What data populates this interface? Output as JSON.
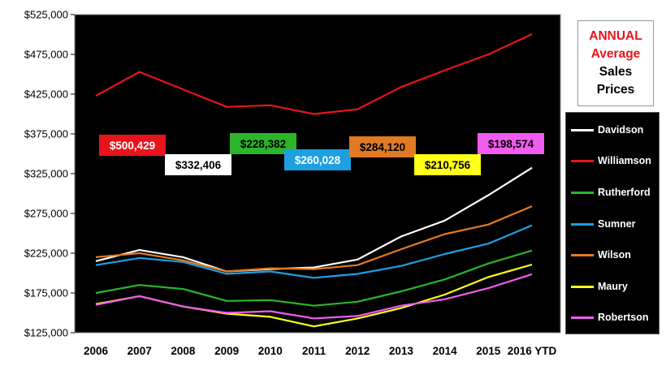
{
  "title": {
    "line1": "ANNUAL",
    "line2": "Average",
    "line3": "Sales",
    "line4": "Prices"
  },
  "colors": {
    "plot_bg": "#000000",
    "title_red": "#e8141c",
    "Davidson": "#ffffff",
    "Williamson": "#e8141c",
    "Rutherford": "#2bb52b",
    "Sumner": "#1e9fe0",
    "Wilson": "#e07a24",
    "Maury": "#ffff1a",
    "Robertson": "#f05cf0"
  },
  "chart_data": {
    "type": "line",
    "categories": [
      "2006",
      "2007",
      "2008",
      "2009",
      "2010",
      "2011",
      "2012",
      "2013",
      "2014",
      "2015",
      "2016 YTD"
    ],
    "ylim": [
      125000,
      525000
    ],
    "yticks": [
      "$125,000",
      "$175,000",
      "$225,000",
      "$275,000",
      "$325,000",
      "$375,000",
      "$425,000",
      "$475,000",
      "$525,000"
    ],
    "ytick_values": [
      125000,
      175000,
      225000,
      275000,
      325000,
      375000,
      425000,
      475000,
      525000
    ],
    "legend_position": "right",
    "grid": false,
    "series": [
      {
        "name": "Davidson",
        "values": [
          215000,
          229000,
          220000,
          202000,
          205000,
          207000,
          217000,
          246000,
          266000,
          298000,
          332406
        ]
      },
      {
        "name": "Williamson",
        "values": [
          423000,
          453000,
          431000,
          409000,
          411000,
          400000,
          406000,
          434000,
          455000,
          475000,
          500429
        ]
      },
      {
        "name": "Rutherford",
        "values": [
          175000,
          185000,
          180000,
          165000,
          166000,
          159000,
          164000,
          177000,
          192000,
          212000,
          228382
        ]
      },
      {
        "name": "Sumner",
        "values": [
          210000,
          219000,
          214000,
          199000,
          202000,
          194000,
          199000,
          209000,
          224000,
          237000,
          260028
        ]
      },
      {
        "name": "Wilson",
        "values": [
          220000,
          225000,
          216000,
          202000,
          206000,
          205000,
          210000,
          230000,
          249000,
          261000,
          284120
        ]
      },
      {
        "name": "Maury",
        "values": [
          161000,
          171000,
          158000,
          149000,
          145000,
          133000,
          143000,
          156000,
          173000,
          195000,
          210756
        ]
      },
      {
        "name": "Robertson",
        "values": [
          160000,
          171000,
          158000,
          150000,
          152000,
          143000,
          146000,
          159000,
          167000,
          181000,
          198574
        ]
      }
    ],
    "callouts": [
      {
        "series": "Williamson",
        "text": "$500,429"
      },
      {
        "series": "Davidson",
        "text": "$332,406"
      },
      {
        "series": "Rutherford",
        "text": "$228,382"
      },
      {
        "series": "Sumner",
        "text": "$260,028"
      },
      {
        "series": "Wilson",
        "text": "$284,120"
      },
      {
        "series": "Maury",
        "text": "$210,756"
      },
      {
        "series": "Robertson",
        "text": "$198,574"
      }
    ]
  }
}
